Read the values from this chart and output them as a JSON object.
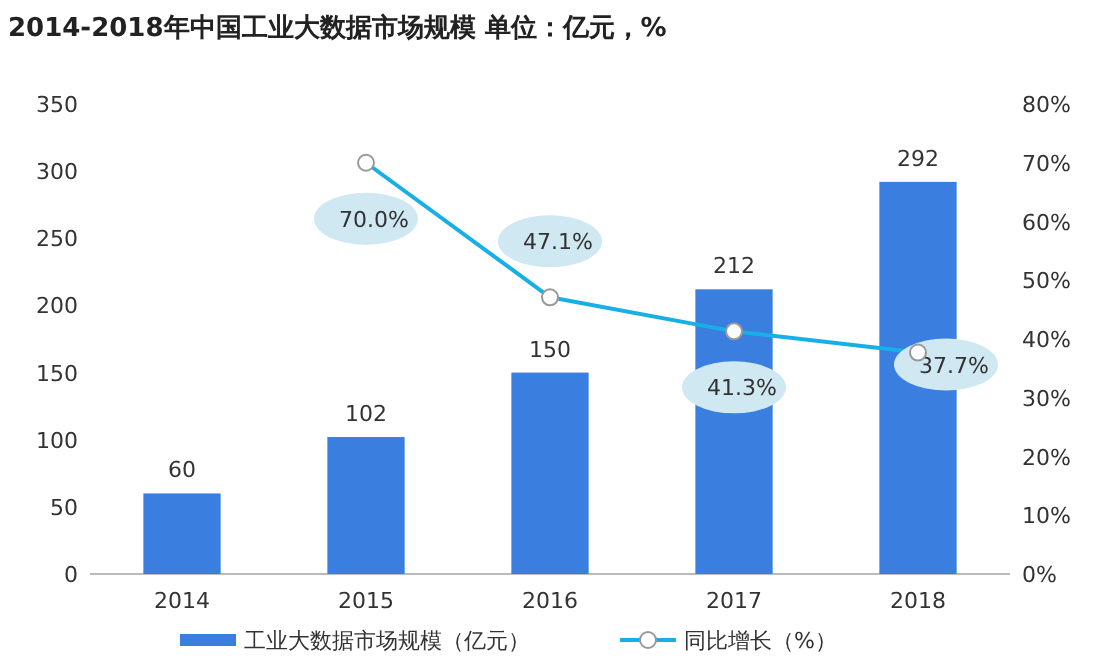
{
  "chart_data": {
    "type": "bar",
    "title": "2014-2018年中国工业大数据市场规模    单位：亿元，%",
    "categories": [
      "2014",
      "2015",
      "2016",
      "2017",
      "2018"
    ],
    "series": [
      {
        "name": "工业大数据市场规模（亿元）",
        "color": "#3a7fe0",
        "values": [
          60,
          102,
          150,
          212,
          292
        ],
        "value_labels": [
          "60",
          "102",
          "150",
          "212",
          "292"
        ]
      },
      {
        "name": "同比增长（%）",
        "type": "line",
        "axis": "y2",
        "color": "#17b0e6",
        "values": [
          null,
          70.0,
          47.1,
          41.3,
          37.7
        ],
        "value_labels": [
          null,
          "70.0%",
          "47.1%",
          "41.3%",
          "37.7%"
        ]
      }
    ],
    "ylim": [
      0,
      350
    ],
    "yticks": [
      0,
      50,
      100,
      150,
      200,
      250,
      300,
      350
    ],
    "y2lim": [
      0,
      80
    ],
    "y2ticks": [
      {
        "value": 0,
        "label": "0%"
      },
      {
        "value": 10,
        "label": "10%"
      },
      {
        "value": 20,
        "label": "20%"
      },
      {
        "value": 30,
        "label": "30%"
      },
      {
        "value": 40,
        "label": "40%"
      },
      {
        "value": 50,
        "label": "50%"
      },
      {
        "value": 60,
        "label": "60%"
      },
      {
        "value": 70,
        "label": "70%"
      },
      {
        "value": 80,
        "label": "80%"
      }
    ],
    "marker": "circle",
    "legend": "bottom",
    "grid": false
  }
}
